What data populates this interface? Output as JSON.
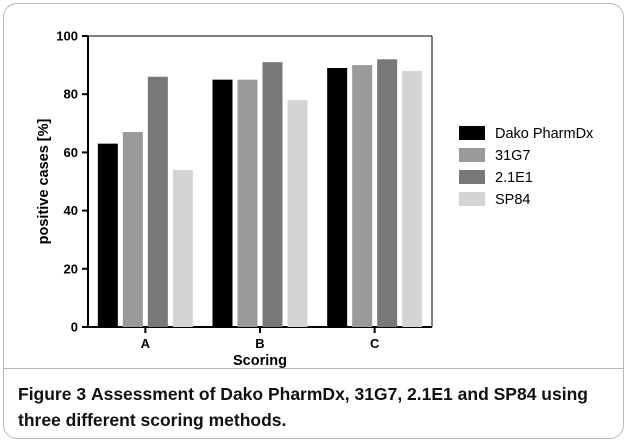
{
  "figure": {
    "label": "Figure 3",
    "caption": "Assessment of Dako PharmDx, 31G7, 2.1E1 and SP84 using three different scoring methods."
  },
  "chart_data": {
    "type": "bar",
    "categories": [
      "A",
      "B",
      "C"
    ],
    "xlabel": "Scoring",
    "ylabel": "positive cases [%]",
    "ylim": [
      0,
      100
    ],
    "yticks": [
      0,
      20,
      40,
      60,
      80,
      100
    ],
    "grid": false,
    "legend_position": "right",
    "series": [
      {
        "name": "Dako PharmDx",
        "color": "#000000",
        "values": [
          63,
          85,
          89
        ]
      },
      {
        "name": "31G7",
        "color": "#9a9a9a",
        "values": [
          67,
          85,
          90
        ]
      },
      {
        "name": "2.1E1",
        "color": "#787878",
        "values": [
          86,
          91,
          92
        ]
      },
      {
        "name": "SP84",
        "color": "#d4d4d4",
        "values": [
          54,
          78,
          88
        ]
      }
    ]
  }
}
